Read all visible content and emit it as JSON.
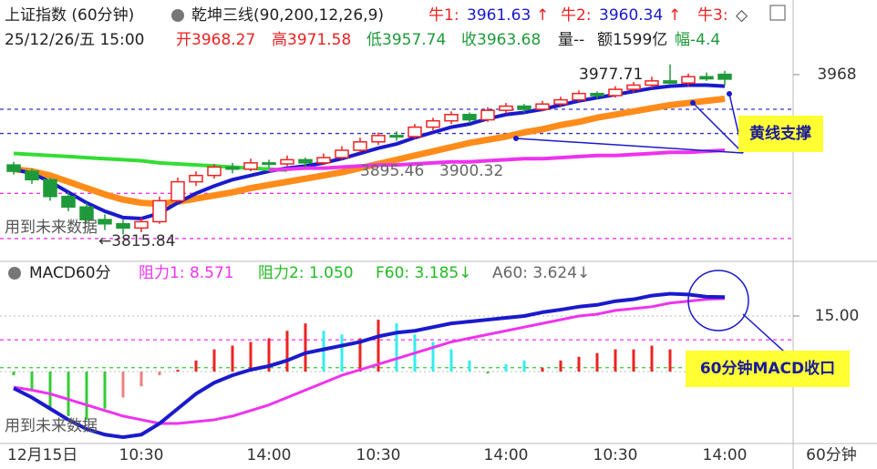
{
  "chart_data": [
    {
      "type": "candlestick",
      "title": "上证指数 (60分钟)",
      "indicator": "乾坤三线(90,200,12,26,9)",
      "legend": [
        {
          "label": "牛1:",
          "value": "3961.63",
          "arrow": "↑"
        },
        {
          "label": "牛2:",
          "value": "3960.34",
          "arrow": "↑"
        },
        {
          "label": "牛3:",
          "value": "◇"
        }
      ],
      "info": [
        "25/12/26/五 15:00",
        "开3968.27",
        "高3971.58",
        "低3957.74",
        "收3963.68",
        "量--",
        "额1599亿",
        "幅-4.4"
      ],
      "categories": [
        "12月15日",
        null,
        null,
        null,
        null,
        null,
        null,
        "10:30",
        null,
        null,
        null,
        null,
        null,
        null,
        "14:00",
        null,
        null,
        null,
        null,
        null,
        "10:30",
        null,
        null,
        null,
        null,
        null,
        null,
        "14:00",
        null,
        null,
        null,
        null,
        null,
        "10:30",
        null,
        null,
        null,
        null,
        null,
        "14:00"
      ],
      "period": "60分钟",
      "open": [
        3882,
        3876,
        3868,
        3852,
        3842,
        3830,
        3826,
        3822,
        3828,
        3848,
        3866,
        3872,
        3880,
        3878,
        3884,
        3883,
        3887,
        3884,
        3889,
        3896,
        3904,
        3910,
        3909,
        3918,
        3924,
        3930,
        3925,
        3934,
        3938,
        3935,
        3940,
        3944,
        3950,
        3948,
        3954,
        3958,
        3962,
        3960,
        3966,
        3968.27
      ],
      "high": [
        3885,
        3879,
        3870,
        3856,
        3846,
        3835,
        3830,
        3832,
        3852,
        3870,
        3876,
        3883,
        3884,
        3888,
        3887,
        3891,
        3889,
        3893,
        3900,
        3908,
        3913,
        3914,
        3921,
        3927,
        3933,
        3932,
        3937,
        3941,
        3940,
        3943,
        3947,
        3953,
        3952,
        3957,
        3961,
        3966,
        3977.71,
        3969,
        3970,
        3971.58
      ],
      "low": [
        3873,
        3864,
        3848,
        3838,
        3826,
        3820,
        3815.84,
        3818,
        3826,
        3846,
        3862,
        3869,
        3874,
        3876,
        3879,
        3881,
        3880,
        3882,
        3887,
        3894,
        3901,
        3905,
        3907,
        3915,
        3921,
        3922,
        3923,
        3931,
        3932,
        3933,
        3938,
        3942,
        3945,
        3946,
        3951,
        3955,
        3959,
        3957,
        3962,
        3957.74
      ],
      "close": [
        3876,
        3868,
        3852,
        3842,
        3830,
        3826,
        3822,
        3828,
        3848,
        3866,
        3872,
        3880,
        3878,
        3884,
        3883,
        3887,
        3884,
        3889,
        3896,
        3904,
        3910,
        3909,
        3918,
        3924,
        3930,
        3925,
        3934,
        3938,
        3935,
        3940,
        3944,
        3950,
        3948,
        3954,
        3958,
        3962,
        3960,
        3966,
        3964,
        3963.68
      ],
      "lines": [
        {
          "color": "#ff8c1a",
          "width": 7,
          "values": [
            3878,
            3876,
            3872,
            3866,
            3860,
            3854,
            3849,
            3846,
            3845,
            3847,
            3850,
            3853,
            3856,
            3860,
            3863,
            3866,
            3869,
            3872,
            3875,
            3879,
            3883,
            3887,
            3891,
            3895,
            3899,
            3903,
            3906,
            3909,
            3913,
            3916,
            3920,
            3923,
            3927,
            3930,
            3933,
            3936,
            3939,
            3941,
            3943,
            3945
          ]
        },
        {
          "color": "#1a1acc",
          "width": 4,
          "values": [
            3878,
            3874,
            3866,
            3856,
            3846,
            3838,
            3832,
            3831,
            3836,
            3846,
            3855,
            3862,
            3868,
            3872,
            3876,
            3879,
            3881,
            3884,
            3888,
            3893,
            3898,
            3902,
            3908,
            3913,
            3918,
            3921,
            3926,
            3930,
            3932,
            3935,
            3939,
            3943,
            3946,
            3949,
            3952,
            3955,
            3957,
            3958,
            3958,
            3957
          ]
        },
        {
          "color": "#33dd33",
          "width": 4,
          "values": [
            3893,
            3892,
            3891,
            3890,
            3889,
            3888,
            3887,
            3886,
            3884,
            3883,
            3882,
            3881,
            3880,
            3879,
            3878,
            3877,
            null,
            null,
            null,
            null,
            null,
            null,
            null,
            null,
            null,
            null,
            null,
            null,
            null,
            null,
            null,
            null,
            null,
            null,
            null,
            null,
            null,
            null,
            null,
            null
          ]
        },
        {
          "color": "#ee33ee",
          "width": 4,
          "values": [
            null,
            null,
            null,
            null,
            null,
            null,
            null,
            null,
            null,
            null,
            null,
            null,
            null,
            null,
            3877,
            3878,
            3879,
            3879,
            3880,
            3881,
            3882,
            3882,
            3883,
            3884,
            3885,
            3885,
            3886,
            3887,
            3888,
            3888,
            3889,
            3890,
            3891,
            3891,
            3892,
            3893,
            3894,
            3894,
            3895,
            3896
          ]
        }
      ],
      "levels": [
        {
          "value": 3935,
          "color": "#3333cc"
        },
        {
          "value": 3912,
          "color": "#3333cc"
        },
        {
          "value": 3855,
          "color": "#ee33ee"
        },
        {
          "value": 3812,
          "color": "#ee33ee"
        }
      ],
      "annotations": [
        "3977.71",
        "3895.46",
        "3900.32",
        "←3815.84",
        "用到未来数据",
        "黄线支撑"
      ],
      "ylim": [
        3792,
        3987
      ],
      "yticks": [
        3968
      ]
    },
    {
      "type": "macd",
      "title": "MACD60分",
      "info": [
        "阻力1: 8.571",
        "阻力2: 1.050",
        "F60: 3.185↓",
        "A60: 3.624↓"
      ],
      "values": [
        -1,
        -5,
        -10,
        -12,
        -13,
        -10,
        -7,
        -4,
        -1,
        0.5,
        3,
        6,
        7,
        8,
        9,
        11,
        13,
        11,
        10,
        9,
        14,
        13,
        10,
        8,
        6,
        3,
        -0.5,
        2,
        3,
        1,
        3,
        4,
        5,
        6,
        6,
        7,
        6,
        3,
        1,
        0.5
      ],
      "bar_colors": [
        "#33cc33",
        "#33cc33",
        "#33cc33",
        "#33cc33",
        "#33cc33",
        "#33cc33",
        "#f08080",
        "#f08080",
        "#f08080",
        "#ee2222",
        "#ee2222",
        "#ee2222",
        "#ee2222",
        "#ee2222",
        "#ee2222",
        "#ee2222",
        "#ee2222",
        "#33eeee",
        "#33eeee",
        "#ee2222",
        "#ee2222",
        "#33eeee",
        "#33eeee",
        "#33eeee",
        "#33eeee",
        "#33eeee",
        "#33cc33",
        "#33eeee",
        "#33eeee",
        "#ee2222",
        "#ee2222",
        "#ee2222",
        "#ee2222",
        "#ee2222",
        "#ee2222",
        "#ee2222",
        "#ee2222",
        "#33eeee",
        "#33cc33",
        "#33cc33"
      ],
      "series": [
        {
          "color": "#ee33ee",
          "width": 3,
          "values": [
            -4.2,
            -5,
            -6,
            -7.5,
            -9,
            -10.5,
            -12,
            -13,
            -14,
            -14,
            -13.5,
            -13,
            -12,
            -10.5,
            -9,
            -7,
            -5,
            -3,
            -1,
            0.5,
            2,
            3.5,
            5,
            6.5,
            8,
            9,
            10,
            11,
            12,
            13,
            14,
            15,
            15.5,
            16.5,
            17,
            17.5,
            18.5,
            19,
            19.5,
            19.7
          ]
        },
        {
          "color": "#1a1acc",
          "width": 4,
          "values": [
            -4.5,
            -7,
            -10,
            -13,
            -15.5,
            -17,
            -17.7,
            -17,
            -14,
            -10,
            -6,
            -3,
            -1,
            0.5,
            1.5,
            3,
            5,
            6,
            7,
            8,
            9.5,
            10.5,
            11,
            12,
            13,
            13.5,
            14,
            14.5,
            15,
            16,
            16.7,
            17.5,
            18,
            19,
            19.5,
            20.5,
            21,
            20.8,
            20.2,
            20.1
          ]
        }
      ],
      "levels": [
        {
          "value": 8.571,
          "color": "#ee33ee"
        },
        {
          "value": 1.05,
          "color": "#33cc33"
        }
      ],
      "annotations": [
        "用到未来数据",
        "60分钟MACD收口"
      ],
      "ylim": [
        -19.4,
        29
      ],
      "yticks": [
        0,
        {
          "value": 15,
          "label": "15.00"
        }
      ]
    }
  ]
}
